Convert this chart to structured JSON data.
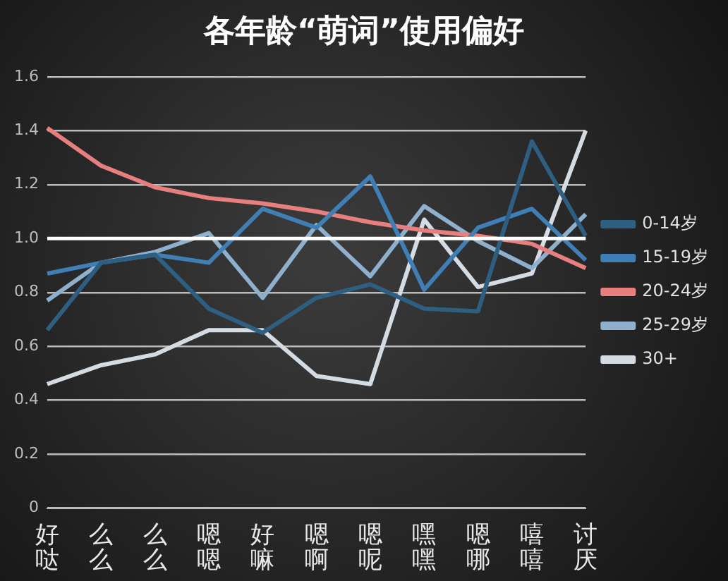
{
  "chart_data": {
    "type": "line",
    "title": "各年龄“萌词”使用偏好",
    "categories": [
      "好哒",
      "么么",
      "么么",
      "嗯嗯",
      "好嘛",
      "嗯啊",
      "嗯呢",
      "嘿嘿",
      "嗯哪",
      "嘻嘻",
      "讨厌"
    ],
    "series": [
      {
        "name": "0-14岁",
        "color": "#2f5f80",
        "values": [
          0.66,
          0.91,
          0.94,
          0.74,
          0.65,
          0.78,
          0.83,
          0.74,
          0.73,
          1.36,
          1.01
        ]
      },
      {
        "name": "15-19岁",
        "color": "#3f7fb5",
        "values": [
          0.87,
          0.91,
          0.94,
          0.91,
          1.11,
          1.04,
          1.23,
          0.81,
          1.04,
          1.11,
          0.92
        ]
      },
      {
        "name": "20-24岁",
        "color": "#e87f7f",
        "values": [
          1.41,
          1.27,
          1.19,
          1.15,
          1.13,
          1.1,
          1.06,
          1.03,
          1.01,
          0.98,
          0.89
        ]
      },
      {
        "name": "25-29岁",
        "color": "#8fb0cc",
        "values": [
          0.77,
          0.91,
          0.95,
          1.02,
          0.78,
          1.05,
          0.86,
          1.12,
          0.99,
          0.89,
          1.09
        ]
      },
      {
        "name": "30+",
        "color": "#d4dbe3",
        "values": [
          0.46,
          0.53,
          0.57,
          0.66,
          0.66,
          0.49,
          0.46,
          1.07,
          0.82,
          0.87,
          1.4
        ]
      }
    ],
    "ylim": [
      0,
      1.6
    ],
    "yticks": [
      {
        "value": 0,
        "label": "0"
      },
      {
        "value": 0.2,
        "label": "0.2"
      },
      {
        "value": 0.4,
        "label": "0.4"
      },
      {
        "value": 0.6,
        "label": "0.6"
      },
      {
        "value": 0.8,
        "label": "0.8"
      },
      {
        "value": 1,
        "label": "1.0"
      },
      {
        "value": 1.2,
        "label": "1.2"
      },
      {
        "value": 1.4,
        "label": "1.4"
      },
      {
        "value": 1.6,
        "label": "1.6"
      }
    ],
    "grid": "y",
    "legend": "right",
    "marker": "none",
    "line_style": "solid",
    "ref_lines": [
      {
        "axis": "y",
        "value": 1.0,
        "color": "#ffffff"
      }
    ]
  }
}
